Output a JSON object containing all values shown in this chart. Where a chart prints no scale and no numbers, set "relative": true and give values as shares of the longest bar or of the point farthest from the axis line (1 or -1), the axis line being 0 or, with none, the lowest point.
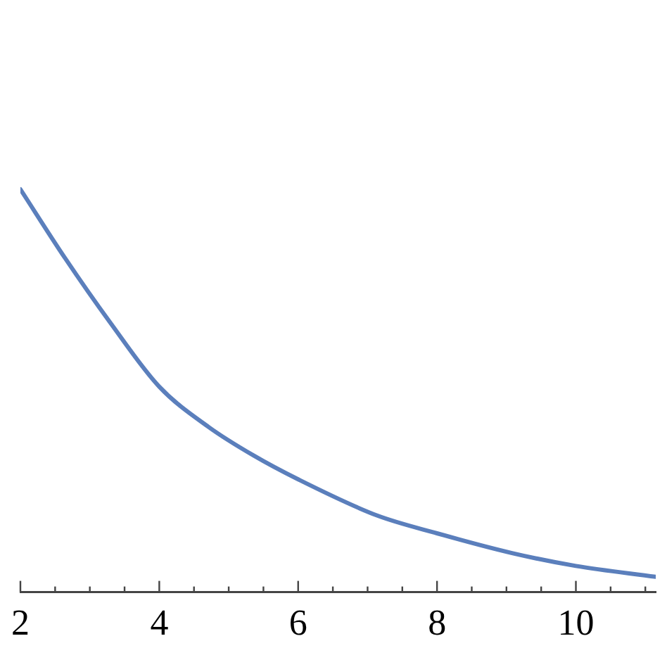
{
  "chart_data": {
    "type": "line",
    "relative": true,
    "grid": false,
    "legend": false,
    "marker": "none",
    "line_style": "solid",
    "x": [
      2,
      2.64,
      3.29,
      4,
      4.71,
      5.35,
      6,
      7.14,
      8,
      9.08,
      10,
      11.15
    ],
    "series": [
      {
        "color": "#5b7fbc",
        "values": [
          1,
          0.83,
          0.67,
          0.51,
          0.41,
          0.34,
          0.28,
          0.19,
          0.146,
          0.097,
          0.065,
          0.038
        ]
      }
    ],
    "xlim": [
      2,
      11.15
    ],
    "xticks": [
      2,
      {
        "value": 2.5,
        "label": null
      },
      {
        "value": 3,
        "label": null
      },
      {
        "value": 3.5,
        "label": null
      },
      4,
      {
        "value": 4.5,
        "label": null
      },
      {
        "value": 5,
        "label": null
      },
      {
        "value": 5.5,
        "label": null
      },
      6,
      {
        "value": 6.5,
        "label": null
      },
      {
        "value": 7,
        "label": null
      },
      {
        "value": 7.5,
        "label": null
      },
      8,
      {
        "value": 8.5,
        "label": null
      },
      {
        "value": 9,
        "label": null
      },
      {
        "value": 9.5,
        "label": null
      },
      10,
      {
        "value": 10.5,
        "label": null
      },
      {
        "value": 11,
        "label": null
      }
    ]
  }
}
